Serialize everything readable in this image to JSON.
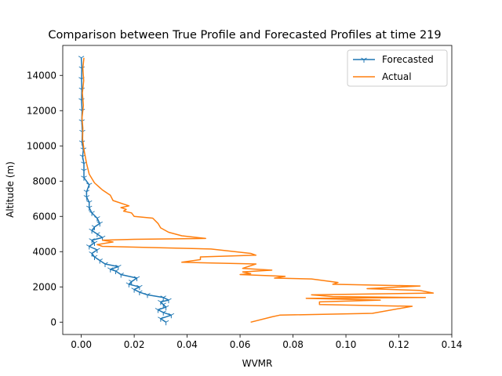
{
  "chart_data": {
    "type": "line",
    "title": "Comparison between True Profile and Forecasted Profiles at time 219",
    "xlabel": "WVMR",
    "ylabel": "Altitude (m)",
    "xlim": [
      -0.007,
      0.14
    ],
    "ylim": [
      -700,
      15700
    ],
    "xticks": [
      0.0,
      0.02,
      0.04,
      0.06,
      0.08,
      0.1,
      0.12,
      0.14
    ],
    "xtick_labels": [
      "0.00",
      "0.02",
      "0.04",
      "0.06",
      "0.08",
      "0.10",
      "0.12",
      "0.14"
    ],
    "yticks": [
      0,
      2000,
      4000,
      6000,
      8000,
      10000,
      12000,
      14000
    ],
    "ytick_labels": [
      "0",
      "2000",
      "4000",
      "6000",
      "8000",
      "10000",
      "12000",
      "14000"
    ],
    "grid": false,
    "legend_position": "top-right",
    "series": [
      {
        "name": "Forecasted",
        "color": "#1f77b4",
        "marker": "tri_down",
        "x": [
          0.032,
          0.03,
          0.034,
          0.031,
          0.029,
          0.032,
          0.031,
          0.03,
          0.033,
          0.031,
          0.025,
          0.022,
          0.02,
          0.022,
          0.018,
          0.019,
          0.021,
          0.015,
          0.013,
          0.011,
          0.014,
          0.009,
          0.007,
          0.005,
          0.004,
          0.006,
          0.003,
          0.005,
          0.004,
          0.008,
          0.006,
          0.004,
          0.005,
          0.007,
          0.006,
          0.004,
          0.003,
          0.003,
          0.002,
          0.002,
          0.003,
          0.001,
          0.001,
          0.001,
          0.0005,
          0.0008,
          0.0003,
          0.0004,
          0.0002,
          0.0003,
          0.0001,
          0.0002,
          0.0001,
          0.0002,
          0.0
        ],
        "y": [
          0,
          200,
          400,
          550,
          700,
          850,
          1000,
          1150,
          1250,
          1400,
          1550,
          1700,
          1850,
          2000,
          2150,
          2300,
          2500,
          2700,
          2900,
          3000,
          3150,
          3300,
          3500,
          3700,
          3900,
          4100,
          4300,
          4500,
          4650,
          4800,
          5000,
          5200,
          5400,
          5600,
          5900,
          6200,
          6500,
          6800,
          7100,
          7400,
          7800,
          8200,
          8600,
          9000,
          9400,
          9800,
          10200,
          10800,
          11400,
          12000,
          12600,
          13200,
          13800,
          14400,
          15000
        ]
      },
      {
        "name": "Actual",
        "color": "#ff7f0e",
        "x": [
          0.064,
          0.072,
          0.075,
          0.11,
          0.125,
          0.09,
          0.09,
          0.113,
          0.085,
          0.13,
          0.095,
          0.087,
          0.133,
          0.128,
          0.108,
          0.128,
          0.095,
          0.097,
          0.087,
          0.073,
          0.077,
          0.06,
          0.064,
          0.061,
          0.072,
          0.061,
          0.066,
          0.038,
          0.045,
          0.045,
          0.066,
          0.064,
          0.049,
          0.008,
          0.006,
          0.012,
          0.008,
          0.02,
          0.047,
          0.038,
          0.033,
          0.03,
          0.029,
          0.027,
          0.02,
          0.019,
          0.016,
          0.017,
          0.015,
          0.018,
          0.012,
          0.011,
          0.008,
          0.005,
          0.003,
          0.002,
          0.001,
          0.0005,
          0.0006,
          0.0003,
          0.0008,
          0.0004,
          0.0009,
          0.0006,
          0.001
        ],
        "y": [
          0,
          300,
          400,
          500,
          900,
          1000,
          1150,
          1250,
          1350,
          1400,
          1450,
          1550,
          1650,
          1800,
          1900,
          2050,
          2150,
          2250,
          2450,
          2500,
          2600,
          2700,
          2750,
          2850,
          2950,
          3050,
          3300,
          3400,
          3550,
          3700,
          3800,
          3900,
          4150,
          4300,
          4400,
          4550,
          4650,
          4700,
          4750,
          4900,
          5100,
          5350,
          5600,
          5900,
          6000,
          6200,
          6300,
          6400,
          6500,
          6600,
          6900,
          7200,
          7500,
          7900,
          8400,
          9000,
          9800,
          10400,
          11000,
          11600,
          12300,
          13000,
          13700,
          14400,
          15000
        ]
      }
    ]
  }
}
